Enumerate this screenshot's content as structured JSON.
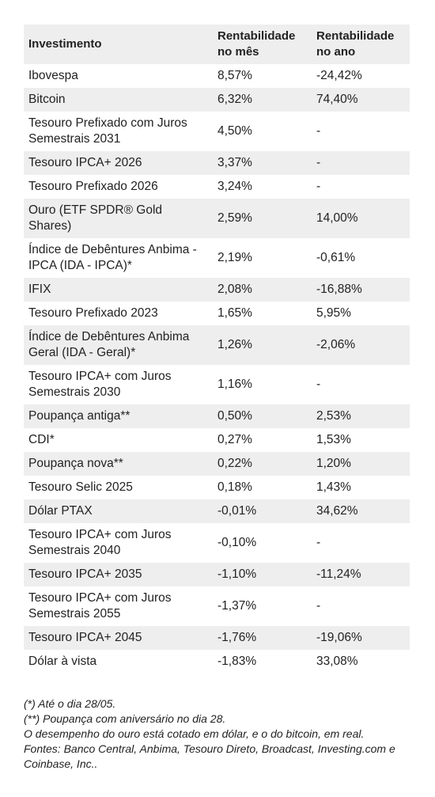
{
  "table": {
    "headers": [
      "Investimento",
      "Rentabilidade no mês",
      "Rentabilidade no ano"
    ],
    "rows": [
      {
        "name": "Ibovespa",
        "month": "8,57%",
        "year": "-24,42%"
      },
      {
        "name": "Bitcoin",
        "month": "6,32%",
        "year": "74,40%"
      },
      {
        "name": "Tesouro Prefixado com Juros Semestrais 2031",
        "month": "4,50%",
        "year": "-"
      },
      {
        "name": "Tesouro IPCA+ 2026",
        "month": "3,37%",
        "year": "-"
      },
      {
        "name": "Tesouro Prefixado 2026",
        "month": "3,24%",
        "year": "-"
      },
      {
        "name": "Ouro (ETF SPDR® Gold Shares)",
        "month": "2,59%",
        "year": "14,00%"
      },
      {
        "name": "Índice de Debêntures Anbima - IPCA (IDA - IPCA)*",
        "month": "2,19%",
        "year": "-0,61%"
      },
      {
        "name": "IFIX",
        "month": "2,08%",
        "year": "-16,88%"
      },
      {
        "name": "Tesouro Prefixado 2023",
        "month": "1,65%",
        "year": "5,95%"
      },
      {
        "name": "Índice de Debêntures Anbima Geral (IDA - Geral)*",
        "month": "1,26%",
        "year": "-2,06%"
      },
      {
        "name": "Tesouro IPCA+ com Juros Semestrais 2030",
        "month": "1,16%",
        "year": "-"
      },
      {
        "name": "Poupança antiga**",
        "month": "0,50%",
        "year": "2,53%"
      },
      {
        "name": "CDI*",
        "month": "0,27%",
        "year": "1,53%"
      },
      {
        "name": "Poupança nova**",
        "month": "0,22%",
        "year": "1,20%"
      },
      {
        "name": "Tesouro Selic 2025",
        "month": "0,18%",
        "year": "1,43%"
      },
      {
        "name": "Dólar PTAX",
        "month": "-0,01%",
        "year": "34,62%"
      },
      {
        "name": "Tesouro IPCA+ com Juros Semestrais 2040",
        "month": "-0,10%",
        "year": "-"
      },
      {
        "name": "Tesouro IPCA+ 2035",
        "month": "-1,10%",
        "year": "-11,24%"
      },
      {
        "name": "Tesouro IPCA+ com Juros Semestrais 2055",
        "month": "-1,37%",
        "year": "-"
      },
      {
        "name": "Tesouro IPCA+ 2045",
        "month": "-1,76%",
        "year": "-19,06%"
      },
      {
        "name": "Dólar à vista",
        "month": "-1,83%",
        "year": "33,08%"
      }
    ]
  },
  "notes": [
    "(*) Até o dia 28/05.",
    "(**) Poupança com aniversário no dia 28.",
    "O desempenho do ouro está cotado em dólar, e o do bitcoin, em real.",
    "Fontes: Banco Central, Anbima, Tesouro Direto, Broadcast, Investing.com e Coinbase, Inc.."
  ]
}
